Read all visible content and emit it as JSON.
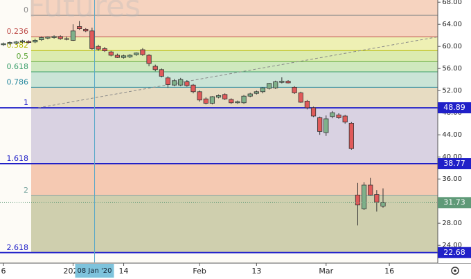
{
  "chart_data": {
    "type": "candlestick",
    "watermark": "Futures",
    "xlim": [
      -0.55,
      68.65
    ],
    "ylim": [
      20.9,
      68.4
    ],
    "yticks": [
      {
        "value": 68,
        "label": "68.00"
      },
      {
        "value": 64,
        "label": "64.00"
      },
      {
        "value": 60,
        "label": "60.00"
      },
      {
        "value": 56,
        "label": "56.00"
      },
      {
        "value": 52,
        "label": "52.00"
      },
      {
        "value": 48,
        "label": "48.00"
      },
      {
        "value": 44,
        "label": "44.00"
      },
      {
        "value": 40,
        "label": "40.00"
      },
      {
        "value": 36,
        "label": "36.00"
      },
      {
        "value": 32,
        "label": "32.00"
      },
      {
        "value": 28,
        "label": "28.00"
      },
      {
        "value": 24,
        "label": "24.00"
      }
    ],
    "xticks": [
      {
        "value": 0,
        "label": "6"
      },
      {
        "value": 11,
        "label": "2020"
      },
      {
        "value": 19,
        "label": "14"
      },
      {
        "value": 31,
        "label": "Feb"
      },
      {
        "value": 40,
        "label": "13"
      },
      {
        "value": 51,
        "label": "Mar"
      },
      {
        "value": 61,
        "label": "16"
      }
    ],
    "crosshair": {
      "x": 14.4,
      "label": "08 Jan '20"
    },
    "up_color": "#7fb08a",
    "down_color": "#e05a5a",
    "series": [
      {
        "open": [
          60.3,
          60.5,
          60.6,
          60.8,
          60.9,
          60.8,
          61.2,
          61.5,
          61.6,
          61.8,
          61.4,
          61.1,
          63.6,
          63.1,
          62.8,
          60.0,
          59.6,
          59.0,
          58.4,
          58.0,
          58.1,
          58.5,
          59.4,
          58.4,
          56.4,
          55.8,
          54.3,
          53.0,
          53.0,
          53.6,
          53.0,
          51.8,
          50.5,
          49.7,
          50.8,
          51.3,
          50.4,
          49.8,
          49.8,
          51.0,
          51.5,
          51.8,
          52.4,
          52.5,
          53.5,
          53.7,
          52.6,
          51.6,
          50.1,
          48.9,
          47.1,
          44.4,
          47.3,
          47.6,
          47.4,
          46.1,
          33.1,
          30.6,
          34.9,
          33.2,
          31.1
        ],
        "high": [
          60.7,
          60.9,
          61.0,
          61.2,
          61.1,
          61.4,
          61.8,
          61.8,
          62.0,
          62.0,
          61.8,
          64.0,
          64.6,
          63.3,
          63.4,
          60.3,
          59.9,
          59.2,
          58.7,
          58.5,
          58.6,
          58.9,
          59.7,
          58.6,
          56.7,
          56.0,
          54.6,
          54.1,
          54.3,
          53.9,
          53.2,
          52.0,
          50.8,
          51.0,
          51.3,
          51.5,
          50.6,
          50.2,
          51.2,
          51.6,
          52.0,
          52.6,
          53.4,
          53.8,
          54.4,
          53.9,
          52.8,
          51.8,
          50.3,
          49.1,
          47.3,
          47.5,
          48.3,
          47.9,
          47.6,
          46.3,
          35.3,
          35.4,
          36.2,
          34.0,
          34.3
        ],
        "low": [
          60.1,
          60.3,
          60.4,
          60.6,
          60.5,
          60.6,
          61.0,
          61.3,
          61.4,
          61.2,
          61.1,
          61.0,
          63.0,
          62.6,
          59.4,
          59.2,
          59.0,
          58.2,
          57.9,
          57.8,
          57.9,
          58.3,
          58.3,
          56.4,
          55.5,
          54.4,
          52.5,
          52.8,
          52.8,
          52.7,
          51.5,
          50.0,
          49.5,
          49.5,
          50.6,
          50.3,
          49.6,
          49.6,
          49.6,
          50.8,
          51.3,
          51.5,
          52.2,
          52.3,
          53.3,
          53.3,
          51.4,
          49.8,
          48.6,
          47.2,
          44.0,
          43.8,
          47.0,
          46.9,
          46.0,
          41.3,
          27.6,
          30.4,
          33.0,
          30.1,
          30.8
        ],
        "close": [
          60.5,
          60.7,
          60.8,
          61.0,
          60.7,
          61.1,
          61.6,
          61.7,
          61.8,
          61.4,
          61.3,
          62.8,
          63.2,
          62.8,
          59.6,
          59.5,
          59.2,
          58.4,
          58.0,
          58.3,
          58.4,
          58.8,
          58.5,
          56.9,
          55.8,
          54.6,
          53.1,
          53.8,
          54.0,
          52.9,
          51.8,
          50.3,
          49.7,
          50.9,
          51.1,
          50.5,
          49.8,
          50.0,
          51.0,
          51.4,
          51.8,
          52.5,
          53.3,
          53.6,
          53.7,
          53.4,
          51.6,
          49.9,
          48.9,
          47.4,
          44.6,
          46.9,
          48.0,
          47.1,
          46.3,
          41.5,
          31.3,
          34.9,
          33.1,
          31.8,
          31.73
        ]
      }
    ],
    "fib_levels": [
      {
        "label": "0",
        "price": 65.63,
        "color": "#8a8a8a",
        "fill": "#f6d3bf"
      },
      {
        "label": "0.236",
        "price": 61.75,
        "color": "#c0504d",
        "fill": "#eef0b4"
      },
      {
        "label": "0.382",
        "price": 59.25,
        "color": "#b3b800",
        "fill": "#dcebb0"
      },
      {
        "label": "0.5",
        "price": 57.25,
        "color": "#5fa83a",
        "fill": "#cfe8be"
      },
      {
        "label": "0.618",
        "price": 55.4,
        "color": "#3a9e6a",
        "fill": "#cae4d6"
      },
      {
        "label": "0.786",
        "price": 52.6,
        "color": "#2a8aa0",
        "fill": "#e7dcc2"
      },
      {
        "label": "1",
        "price": 48.89,
        "color": "#2020c8",
        "fill": "#d9d2e2"
      },
      {
        "label": "1.618",
        "price": 38.77,
        "color": "#2020c8",
        "fill": "#f5c9b2"
      },
      {
        "label": "2",
        "price": 33.0,
        "color": "#7aa6a0",
        "fill": "#cfcfae"
      },
      {
        "label": "2.618",
        "price": 22.68,
        "color": "#2020c8"
      }
    ],
    "price_labels": [
      {
        "price": 48.89,
        "label": "48.89",
        "color": "#2020c8"
      },
      {
        "price": 38.77,
        "label": "38.77",
        "color": "#2020c8"
      },
      {
        "price": 22.68,
        "label": "22.68",
        "color": "#2020c8"
      }
    ],
    "last_color": "#5f9a78",
    "trendline": {
      "x": [
        5.5,
        68.5
      ],
      "y": [
        48.89,
        61.7
      ]
    }
  }
}
